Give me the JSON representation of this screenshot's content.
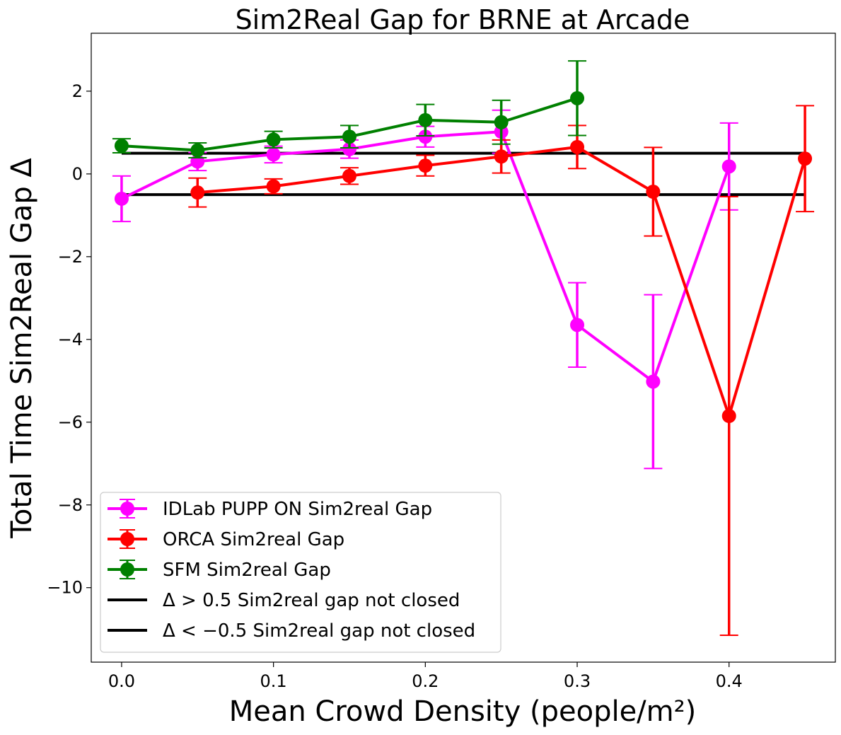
{
  "chart_data": {
    "type": "line",
    "title": "Sim2Real Gap for BRNE at Arcade",
    "xlabel": "Mean Crowd Density (people/m²)",
    "ylabel": "Total Time Sim2Real Gap Δ",
    "xlim": [
      -0.02,
      0.47
    ],
    "ylim": [
      -11.8,
      3.4
    ],
    "xticks": [
      0.0,
      0.1,
      0.2,
      0.3,
      0.4
    ],
    "xtick_labels": [
      "0.0",
      "0.1",
      "0.2",
      "0.3",
      "0.4"
    ],
    "yticks": [
      2,
      0,
      -2,
      -4,
      -6,
      -8,
      -10
    ],
    "ytick_labels": [
      "2",
      "0",
      "−2",
      "−4",
      "−6",
      "−8",
      "−10"
    ],
    "grid": false,
    "legend_position": "lower-left",
    "series": [
      {
        "name": "IDLab PUPP ON Sim2real Gap",
        "color": "#ff00ff",
        "x": [
          0.0,
          0.05,
          0.1,
          0.15,
          0.2,
          0.25,
          0.3,
          0.35,
          0.4
        ],
        "y": [
          -0.6,
          0.3,
          0.47,
          0.6,
          0.9,
          1.02,
          -3.65,
          -5.02,
          0.18
        ],
        "err": [
          0.55,
          0.22,
          0.2,
          0.22,
          0.25,
          0.52,
          1.02,
          2.1,
          1.05
        ]
      },
      {
        "name": "ORCA Sim2real Gap",
        "color": "#ff0000",
        "x": [
          0.05,
          0.1,
          0.15,
          0.2,
          0.25,
          0.3,
          0.35,
          0.4,
          0.45
        ],
        "y": [
          -0.45,
          -0.3,
          -0.05,
          0.2,
          0.42,
          0.65,
          -0.43,
          -5.85,
          0.37
        ],
        "err": [
          0.35,
          0.18,
          0.2,
          0.25,
          0.4,
          0.52,
          1.07,
          5.3,
          1.28
        ]
      },
      {
        "name": "SFM Sim2real Gap",
        "color": "#008000",
        "x": [
          0.0,
          0.05,
          0.1,
          0.15,
          0.2,
          0.25,
          0.3
        ],
        "y": [
          0.68,
          0.57,
          0.83,
          0.9,
          1.3,
          1.25,
          1.83
        ],
        "err": [
          0.17,
          0.18,
          0.2,
          0.27,
          0.38,
          0.53,
          0.9
        ]
      }
    ],
    "reference_lines": [
      {
        "name": "Δ > 0.5 Sim2real gap not closed",
        "y": 0.5,
        "color": "#000000",
        "x": [
          0.0,
          0.45
        ]
      },
      {
        "name": "Δ < −0.5 Sim2real gap not closed",
        "y": -0.5,
        "color": "#000000",
        "x": [
          0.0,
          0.45
        ]
      }
    ]
  }
}
